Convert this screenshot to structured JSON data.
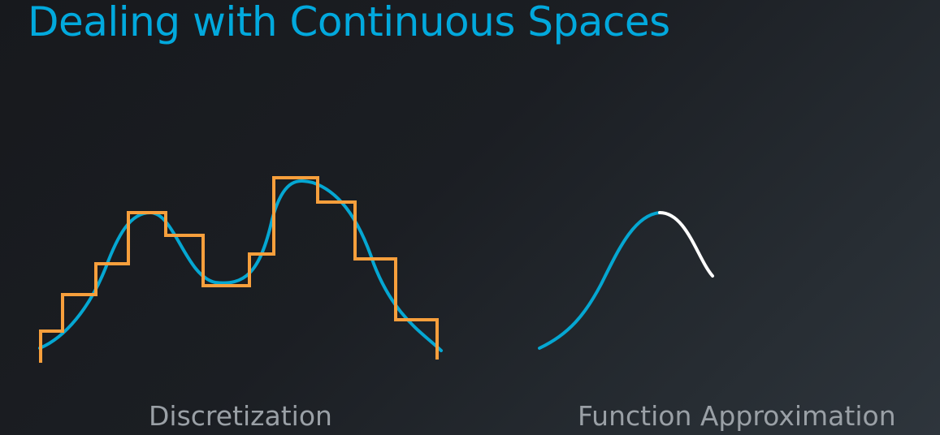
{
  "slide": {
    "title": "Dealing with Continuous Spaces"
  },
  "panels": [
    {
      "caption": "Discretization"
    },
    {
      "caption": "Function Approximation"
    }
  ],
  "colors": {
    "title": "#02a9dd",
    "curve": "#05a7d2",
    "steps": "#f79f3c",
    "approximation_tail": "#ffffff",
    "caption": "#9aa0a6",
    "background_dark": "#17191d",
    "background_light": "#2e353c"
  }
}
